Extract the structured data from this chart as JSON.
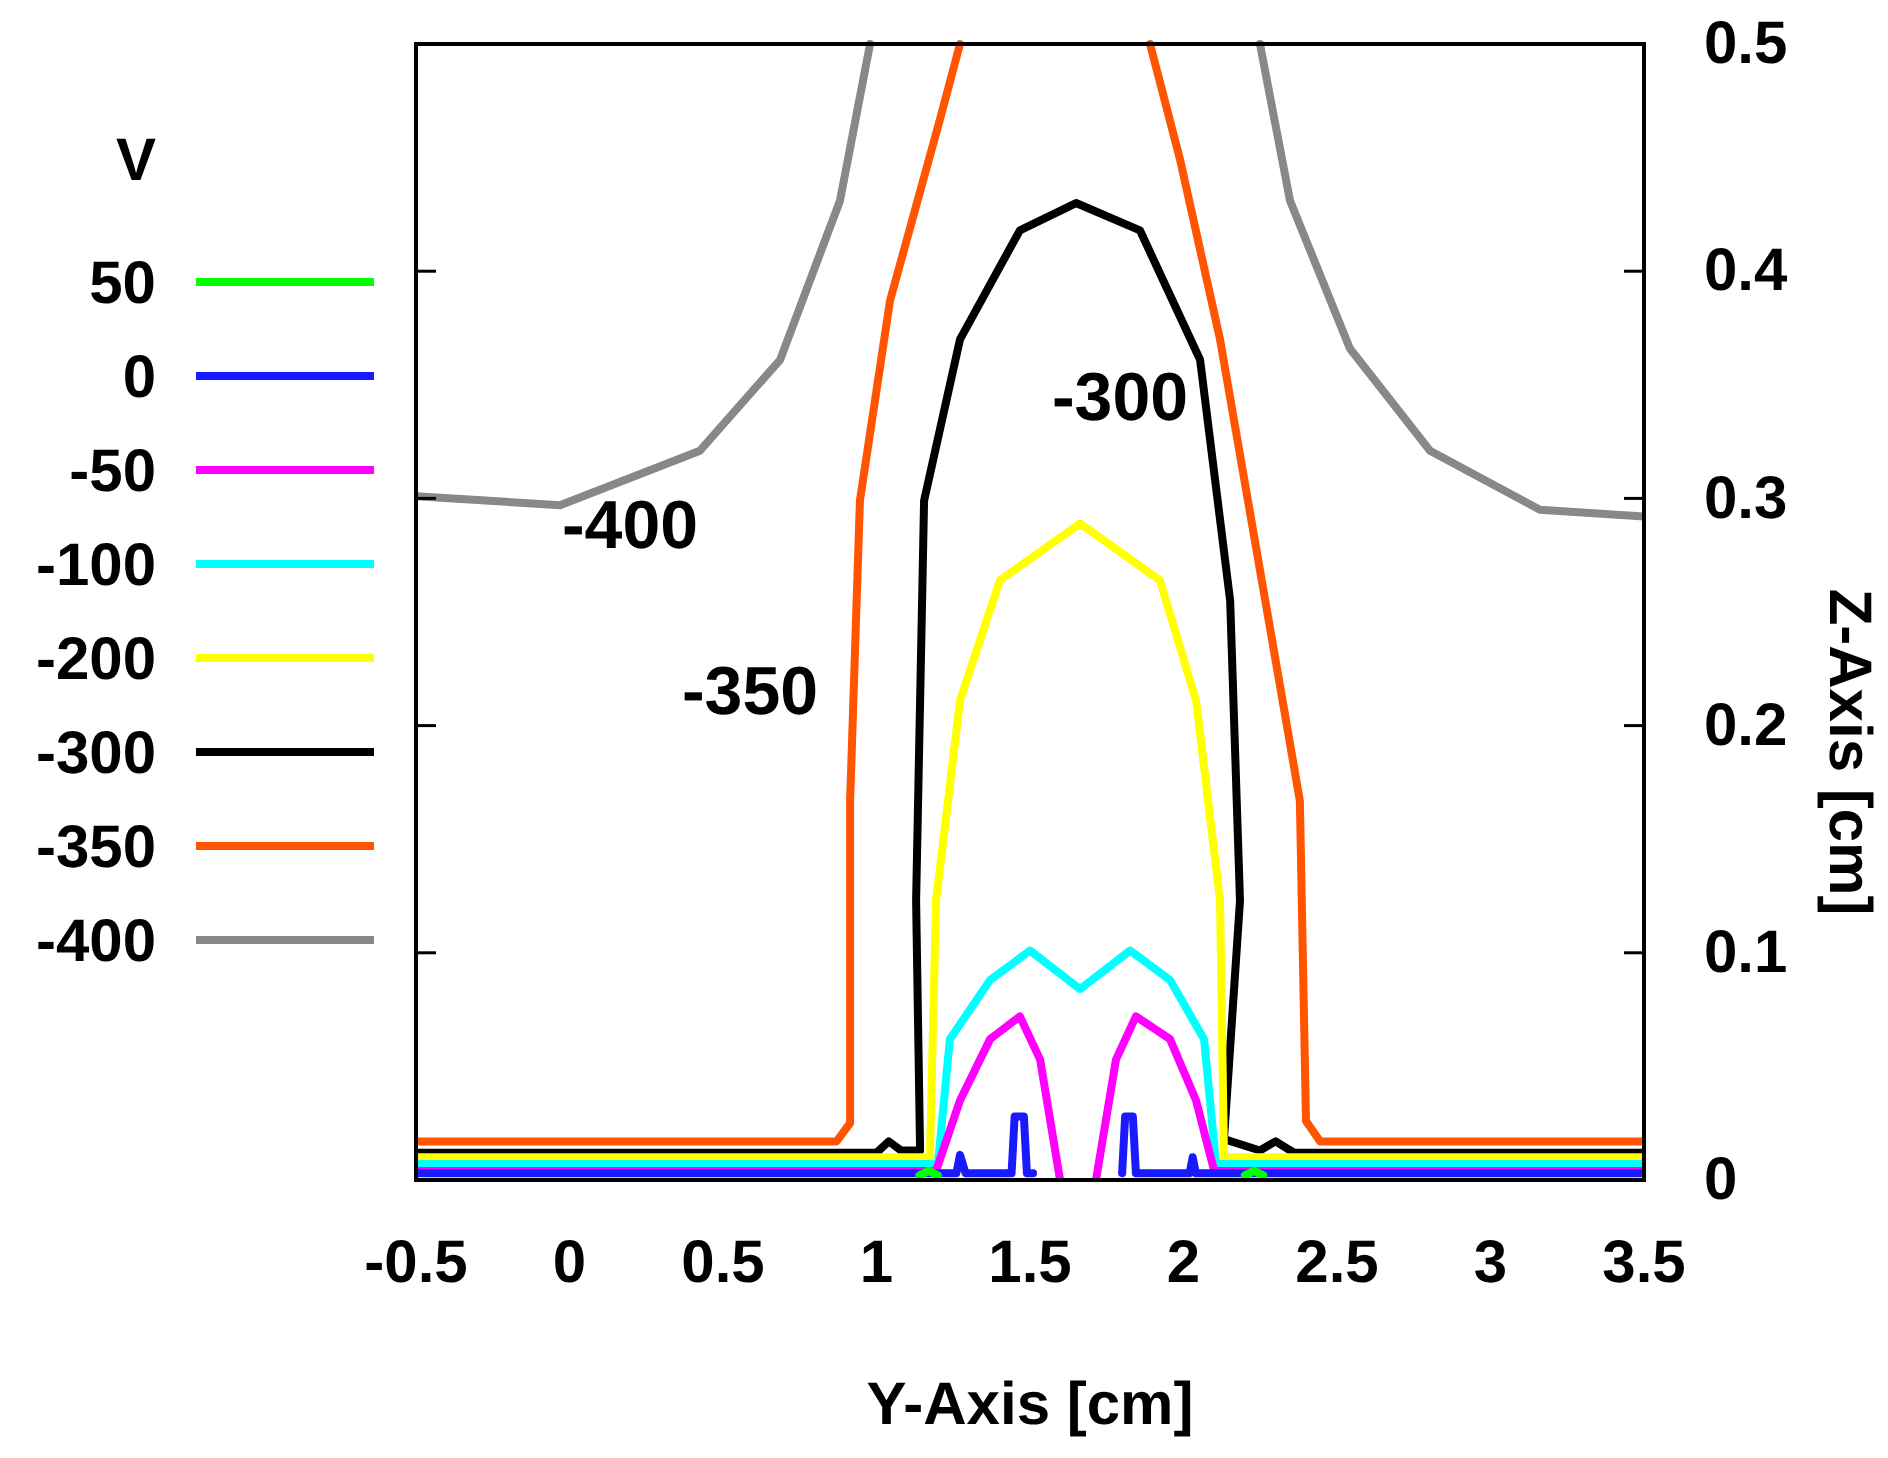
{
  "chart_data": {
    "type": "line",
    "xlabel": "Y-Axis [cm]",
    "ylabel": "Z-Axis [cm]",
    "legend_title": "V",
    "legend": "left",
    "grid": false,
    "marker": "none",
    "xlim": [
      -0.5,
      3.5
    ],
    "xticks": [
      -0.5,
      0,
      0.5,
      1,
      1.5,
      2,
      2.5,
      3,
      3.5
    ],
    "ylim": [
      0,
      0.5
    ],
    "yticks": [
      0,
      0.1,
      0.2,
      0.3,
      0.4,
      0.5
    ],
    "series": [
      {
        "name": "50",
        "color": "#00ff00",
        "x": [
          1.14,
          1.17,
          1.2,
          null,
          2.2,
          2.23,
          2.26
        ],
        "values": [
          0.002,
          0.004,
          0.002,
          null,
          0.002,
          0.004,
          0.002
        ]
      },
      {
        "name": "0",
        "color": "#1a1aff",
        "x": [
          -0.5,
          1.26,
          1.272,
          1.29,
          1.44,
          1.45,
          1.48,
          1.49,
          1.51,
          null,
          1.8,
          1.81,
          1.835,
          1.845,
          2.02,
          2.03,
          2.04,
          3.5
        ],
        "values": [
          0.003,
          0.003,
          0.011,
          0.003,
          0.003,
          0.028,
          0.028,
          0.003,
          0.003,
          null,
          0.003,
          0.028,
          0.028,
          0.003,
          0.003,
          0.01,
          0.003,
          0.003
        ]
      },
      {
        "name": "-50",
        "color": "#ff00ff",
        "x": [
          -0.5,
          1.194,
          1.272,
          1.37,
          1.467,
          1.533,
          1.598,
          null,
          1.715,
          1.78,
          1.845,
          1.956,
          2.041,
          2.1,
          3.5
        ],
        "values": [
          0.004,
          0.004,
          0.035,
          0.062,
          0.072,
          0.053,
          0,
          null,
          0,
          0.053,
          0.072,
          0.062,
          0.035,
          0.004,
          0.004
        ]
      },
      {
        "name": "-100",
        "color": "#00ffff",
        "x": [
          -0.5,
          1.2,
          1.239,
          1.37,
          1.5,
          1.663,
          1.826,
          1.956,
          2.067,
          2.106,
          3.5
        ],
        "values": [
          0.007,
          0.007,
          0.062,
          0.088,
          0.101,
          0.084,
          0.101,
          0.088,
          0.062,
          0.007,
          0.007
        ]
      },
      {
        "name": "-200",
        "color": "#ffff00",
        "x": [
          -0.5,
          1.174,
          1.194,
          1.272,
          1.402,
          1.663,
          1.923,
          2.041,
          2.119,
          2.132,
          3.5
        ],
        "values": [
          0.01,
          0.01,
          0.123,
          0.211,
          0.264,
          0.289,
          0.264,
          0.211,
          0.123,
          0.01,
          0.01
        ]
      },
      {
        "name": "-300",
        "color": "#000000",
        "x": [
          -0.5,
          1.0,
          1.04,
          1.08,
          1.142,
          1.129,
          1.155,
          1.272,
          1.467,
          1.65,
          1.858,
          2.054,
          2.152,
          2.184,
          2.132,
          2.249,
          2.3,
          2.36,
          3.5
        ],
        "values": [
          0.012,
          0.012,
          0.017,
          0.013,
          0.013,
          0.123,
          0.299,
          0.37,
          0.418,
          0.43,
          0.418,
          0.361,
          0.255,
          0.123,
          0.018,
          0.013,
          0.017,
          0.012,
          0.012
        ]
      },
      {
        "name": "-350",
        "color": "#ff5500",
        "x": [
          -0.5,
          0.87,
          0.914,
          0.914,
          0.946,
          1.044,
          1.207,
          1.272,
          null,
          1.891,
          1.989,
          2.119,
          2.379,
          2.399,
          2.445,
          3.5
        ],
        "values": [
          0.017,
          0.017,
          0.025,
          0.167,
          0.299,
          0.387,
          0.467,
          0.5,
          null,
          0.5,
          0.449,
          0.37,
          0.167,
          0.026,
          0.017,
          0.017
        ]
      },
      {
        "name": "-400",
        "color": "#888888",
        "x": [
          -0.5,
          -0.031,
          0.425,
          0.686,
          0.881,
          0.979,
          null,
          2.249,
          2.347,
          2.542,
          2.803,
          3.161,
          3.5
        ],
        "values": [
          0.301,
          0.297,
          0.321,
          0.361,
          0.431,
          0.5,
          null,
          0.5,
          0.431,
          0.366,
          0.321,
          0.295,
          0.292
        ]
      }
    ],
    "annotations": [
      "-400",
      "-350",
      "-300"
    ]
  }
}
